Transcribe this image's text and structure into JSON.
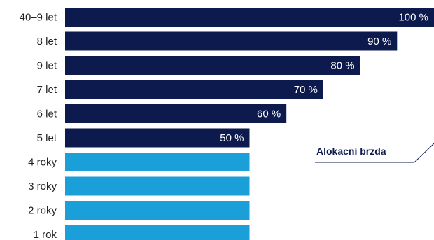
{
  "chart_data": {
    "type": "bar",
    "orientation": "horizontal",
    "categories": [
      "40–9 let",
      "8 let",
      "9 let",
      "7 let",
      "6 let",
      "5 let",
      "4 roky",
      "3 roky",
      "2 roky",
      "1 rok"
    ],
    "values": [
      100,
      90,
      80,
      70,
      60,
      50,
      50,
      50,
      50,
      50
    ],
    "value_labels": [
      "100 %",
      "90 %",
      "80 %",
      "70 %",
      "60 %",
      "50 %",
      "",
      "",
      "",
      ""
    ],
    "xlim": [
      0,
      100
    ],
    "colors": {
      "dark": "#0d1a4d",
      "light": "#1a9fd9",
      "annotation_line": "#0d1a4d"
    },
    "bar_color_keys": [
      "dark",
      "dark",
      "dark",
      "dark",
      "dark",
      "dark",
      "light",
      "light",
      "light",
      "light"
    ],
    "annotation": "Alokacní brzda"
  }
}
